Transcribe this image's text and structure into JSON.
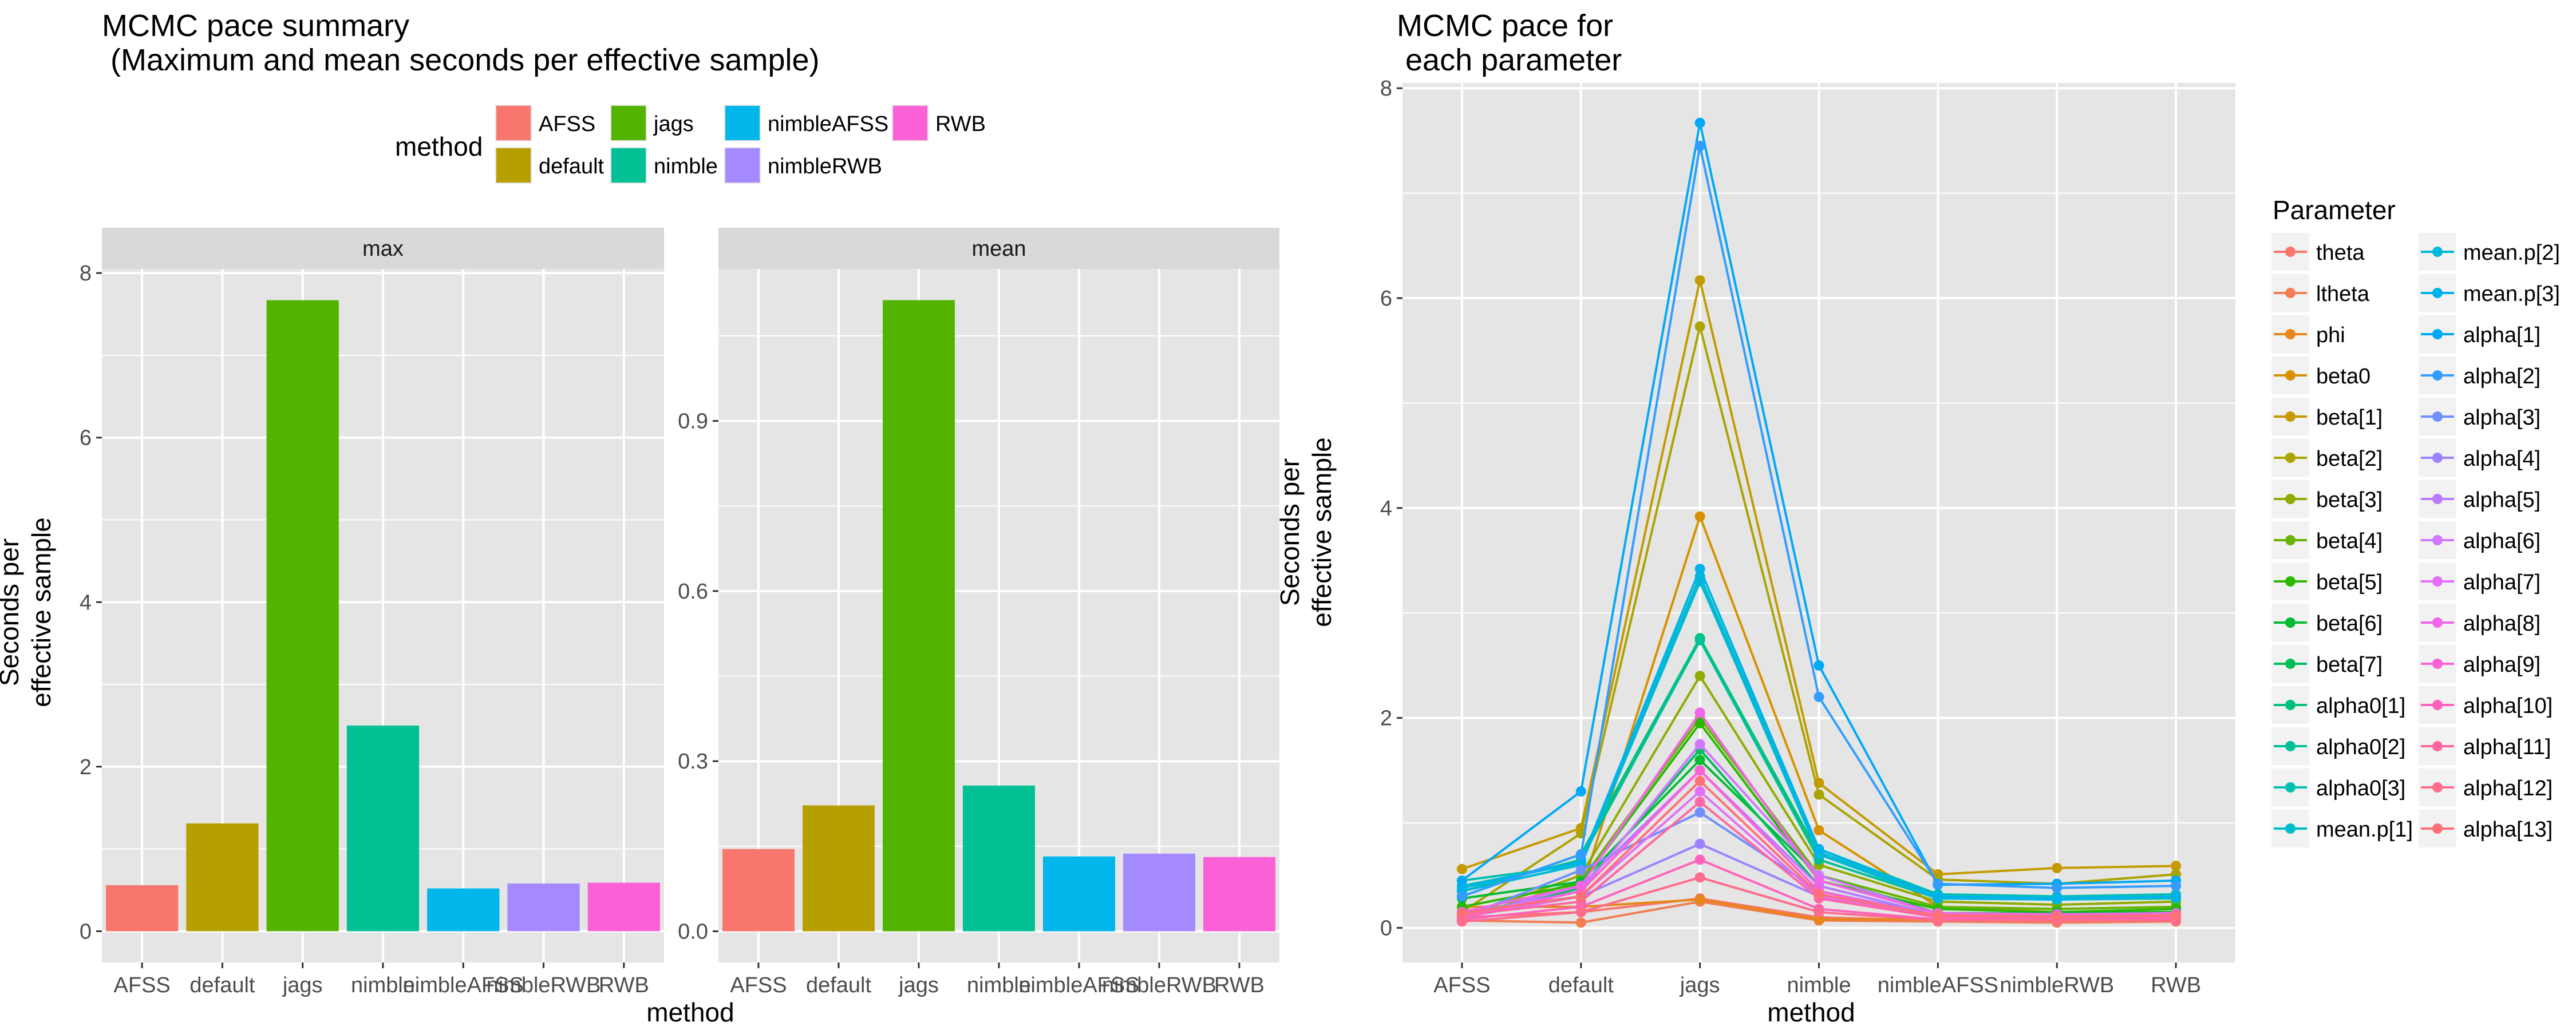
{
  "colors": {
    "panel_bg": "#e5e5e5",
    "strip_bg": "#d9d9d9",
    "grid": "#ffffff",
    "text": "#000000",
    "axis_text": "#4d4d4d"
  },
  "method_colors": {
    "AFSS": "#f8766d",
    "default": "#b79f00",
    "jags": "#53b400",
    "nimble": "#00c094",
    "nimbleAFSS": "#00b6eb",
    "nimbleRWB": "#a58aff",
    "RWB": "#fb61d7"
  },
  "parameter_colors": {
    "theta": "#f8766d",
    "ltheta": "#f27d52",
    "phi": "#e7861b",
    "beta0": "#d79100",
    "beta[1]": "#c49a00",
    "beta[2]": "#aba300",
    "beta[3]": "#8fab00",
    "beta[4]": "#68b300",
    "beta[5]": "#2bb800",
    "beta[6]": "#00bc33",
    "beta[7]": "#00bf59",
    "alpha0[1]": "#00c179",
    "alpha0[2]": "#00c196",
    "alpha0[3]": "#00c0b0",
    "mean.p[1]": "#00bdc7",
    "mean.p[2]": "#00b8da",
    "mean.p[3]": "#00b2ea",
    "alpha[1]": "#00a9f6",
    "alpha[2]": "#339dff",
    "alpha[3]": "#6f8fff",
    "alpha[4]": "#9b83ff",
    "alpha[5]": "#b77bff",
    "alpha[6]": "#d079ff",
    "alpha[7]": "#e36efa",
    "alpha[8]": "#f166e6",
    "alpha[9]": "#fb61d7",
    "alpha[10]": "#ff62bc",
    "alpha[11]": "#ff67a4",
    "alpha[12]": "#ff6c8c",
    "alpha[13]": "#fd7078"
  },
  "left": {
    "title": "MCMC pace summary\n (Maximum and mean seconds per effective sample)",
    "legend_title": "method",
    "ylabel": "Seconds per\neffective sample",
    "xlabel": "method"
  },
  "right": {
    "title": "MCMC pace for\n each parameter",
    "legend_title": "Parameter",
    "ylabel": "Seconds per\neffective sample",
    "xlabel": "method"
  },
  "chart_data": [
    {
      "type": "bar",
      "title": "MCMC pace summary\n (Maximum and mean seconds per effective sample)",
      "facet": "max",
      "categories": [
        "AFSS",
        "default",
        "jags",
        "nimble",
        "nimbleAFSS",
        "nimbleRWB",
        "RWB"
      ],
      "values": [
        0.56,
        1.31,
        7.67,
        2.5,
        0.52,
        0.58,
        0.59
      ],
      "xlabel": "method",
      "ylabel": "Seconds per\neffective sample",
      "ylim": [
        -0.38,
        8.05
      ],
      "yticks": [
        0,
        2,
        4,
        6,
        8
      ],
      "ytick_labels": [
        "0",
        "2",
        "4",
        "6",
        "8"
      ],
      "legend": "top"
    },
    {
      "type": "bar",
      "facet": "mean",
      "categories": [
        "AFSS",
        "default",
        "jags",
        "nimble",
        "nimbleAFSS",
        "nimbleRWB",
        "RWB"
      ],
      "values": [
        0.145,
        0.222,
        1.113,
        0.257,
        0.132,
        0.137,
        0.131
      ],
      "xlabel": "method",
      "ylim": [
        -0.055,
        1.168
      ],
      "yticks": [
        0,
        0.3,
        0.6,
        0.9
      ],
      "ytick_labels": [
        "0.0",
        "0.3",
        "0.6",
        "0.9"
      ]
    },
    {
      "type": "line",
      "title": "MCMC pace for\n each parameter",
      "categories": [
        "AFSS",
        "default",
        "jags",
        "nimble",
        "nimbleAFSS",
        "nimbleRWB",
        "RWB"
      ],
      "xlabel": "method",
      "ylabel": "Seconds per\neffective sample",
      "ylim": [
        -0.33,
        8.05
      ],
      "yticks": [
        0,
        2,
        4,
        6,
        8
      ],
      "ytick_labels": [
        "0",
        "2",
        "4",
        "6",
        "8"
      ],
      "legend": "right",
      "series": [
        {
          "name": "theta",
          "values": [
            0.1,
            0.15,
            0.28,
            0.1,
            0.07,
            0.06,
            0.07
          ]
        },
        {
          "name": "ltheta",
          "values": [
            0.07,
            0.05,
            0.25,
            0.07,
            0.06,
            0.05,
            0.06
          ]
        },
        {
          "name": "phi",
          "values": [
            0.2,
            0.2,
            0.27,
            0.08,
            0.08,
            0.07,
            0.08
          ]
        },
        {
          "name": "beta0",
          "values": [
            0.12,
            0.35,
            3.92,
            0.93,
            0.2,
            0.15,
            0.15
          ]
        },
        {
          "name": "beta[1]",
          "values": [
            0.56,
            0.95,
            6.17,
            1.38,
            0.51,
            0.57,
            0.59
          ]
        },
        {
          "name": "beta[2]",
          "values": [
            0.15,
            0.9,
            5.73,
            1.27,
            0.46,
            0.42,
            0.51
          ]
        },
        {
          "name": "beta[3]",
          "values": [
            0.1,
            0.5,
            2.4,
            0.6,
            0.25,
            0.22,
            0.25
          ]
        },
        {
          "name": "beta[4]",
          "values": [
            0.08,
            0.45,
            2.0,
            0.5,
            0.2,
            0.18,
            0.2
          ]
        },
        {
          "name": "beta[5]",
          "values": [
            0.2,
            0.42,
            1.95,
            0.45,
            0.18,
            0.15,
            0.18
          ]
        },
        {
          "name": "beta[6]",
          "values": [
            0.28,
            0.44,
            1.6,
            0.5,
            0.14,
            0.14,
            0.15
          ]
        },
        {
          "name": "beta[7]",
          "values": [
            0.1,
            0.38,
            1.7,
            0.4,
            0.12,
            0.12,
            0.14
          ]
        },
        {
          "name": "alpha0[1]",
          "values": [
            0.3,
            0.7,
            2.76,
            0.7,
            0.3,
            0.28,
            0.3
          ]
        },
        {
          "name": "alpha0[2]",
          "values": [
            0.35,
            0.65,
            2.74,
            0.65,
            0.28,
            0.27,
            0.28
          ]
        },
        {
          "name": "alpha0[3]",
          "values": [
            0.45,
            0.6,
            3.3,
            0.75,
            0.32,
            0.3,
            0.32
          ]
        },
        {
          "name": "mean.p[1]",
          "values": [
            0.4,
            0.62,
            3.35,
            0.72,
            0.3,
            0.29,
            0.3
          ]
        },
        {
          "name": "mean.p[2]",
          "values": [
            0.35,
            0.6,
            3.3,
            0.7,
            0.28,
            0.27,
            0.29
          ]
        },
        {
          "name": "mean.p[3]",
          "values": [
            0.38,
            0.63,
            3.42,
            0.75,
            0.3,
            0.28,
            0.3
          ]
        },
        {
          "name": "alpha[1]",
          "values": [
            0.45,
            1.3,
            7.67,
            2.5,
            0.41,
            0.42,
            0.45
          ]
        },
        {
          "name": "alpha[2]",
          "values": [
            0.3,
            0.7,
            7.45,
            2.2,
            0.42,
            0.38,
            0.4
          ]
        },
        {
          "name": "alpha[3]",
          "values": [
            0.1,
            0.55,
            1.1,
            0.35,
            0.12,
            0.12,
            0.13
          ]
        },
        {
          "name": "alpha[4]",
          "values": [
            0.15,
            0.3,
            0.8,
            0.3,
            0.1,
            0.1,
            0.11
          ]
        },
        {
          "name": "alpha[5]",
          "values": [
            0.1,
            0.4,
            1.5,
            0.4,
            0.12,
            0.11,
            0.12
          ]
        },
        {
          "name": "alpha[6]",
          "values": [
            0.12,
            0.35,
            1.75,
            0.5,
            0.13,
            0.12,
            0.13
          ]
        },
        {
          "name": "alpha[7]",
          "values": [
            0.1,
            0.3,
            1.3,
            0.3,
            0.1,
            0.1,
            0.1
          ]
        },
        {
          "name": "alpha[8]",
          "values": [
            0.15,
            0.4,
            2.05,
            0.45,
            0.14,
            0.13,
            0.14
          ]
        },
        {
          "name": "alpha[9]",
          "values": [
            0.1,
            0.35,
            1.5,
            0.35,
            0.11,
            0.1,
            0.11
          ]
        },
        {
          "name": "alpha[10]",
          "values": [
            0.08,
            0.2,
            0.65,
            0.18,
            0.08,
            0.08,
            0.08
          ]
        },
        {
          "name": "alpha[11]",
          "values": [
            0.12,
            0.25,
            1.2,
            0.28,
            0.1,
            0.09,
            0.1
          ]
        },
        {
          "name": "alpha[12]",
          "values": [
            0.06,
            0.15,
            0.48,
            0.15,
            0.07,
            0.07,
            0.07
          ]
        },
        {
          "name": "alpha[13]",
          "values": [
            0.14,
            0.3,
            1.4,
            0.32,
            0.12,
            0.11,
            0.12
          ]
        }
      ]
    }
  ]
}
